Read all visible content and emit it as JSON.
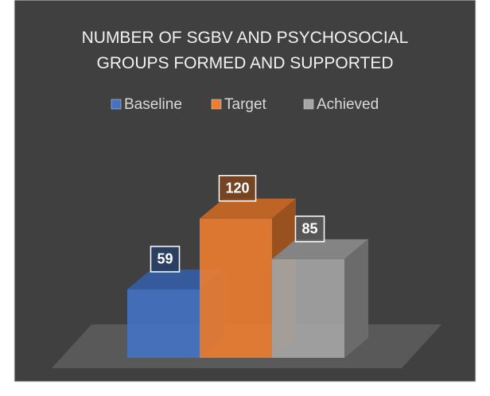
{
  "chart_data": {
    "type": "bar3d",
    "title": "NUMBER OF SGBV AND PSYCHOSOCIAL GROUPS FORMED AND SUPPORTED",
    "categories": [
      null
    ],
    "series": [
      {
        "name": "Baseline",
        "color": "#4472c4",
        "values": [
          59
        ]
      },
      {
        "name": "Target",
        "color": "#ed7d31",
        "values": [
          120
        ]
      },
      {
        "name": "Achieved",
        "color": "#a5a5a5",
        "values": [
          85
        ]
      }
    ],
    "legend": "top"
  }
}
